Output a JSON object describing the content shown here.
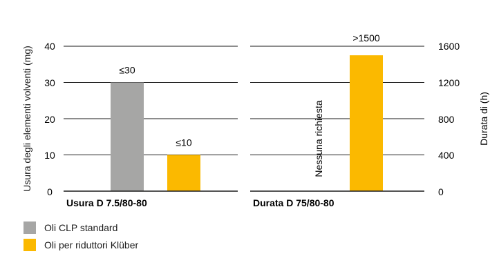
{
  "colors": {
    "standard": "#a6a6a5",
    "kluber": "#fbb900",
    "axis": "#1a1a1a"
  },
  "chart_data": [
    {
      "type": "bar",
      "title": "Usura D 7.5/80-80",
      "ylabel": "Usura degli  elementi volventi (mg)",
      "ylim": [
        0,
        40
      ],
      "yticks": [
        "0",
        "10",
        "20",
        "30",
        "40"
      ],
      "series": [
        {
          "name": "Oli CLP standard",
          "values": [
            30
          ],
          "label": "≤30"
        },
        {
          "name": "Oli per riduttori Klüber",
          "values": [
            10
          ],
          "label": "≤10"
        }
      ]
    },
    {
      "type": "bar",
      "title": "Durata D 75/80-80",
      "ylabel": "Durata di (h)",
      "ylim": [
        0,
        1600
      ],
      "yticks": [
        "0",
        "400",
        "800",
        "1200",
        "1600"
      ],
      "annotation": "Nessuna richiesta",
      "series": [
        {
          "name": "Oli per riduttori Klüber",
          "values": [
            1500
          ],
          "label": ">1500"
        }
      ]
    }
  ],
  "legend": [
    {
      "label": "Oli CLP standard",
      "color": "#a6a6a5"
    },
    {
      "label": "Oli per riduttori Klüber",
      "color": "#fbb900"
    }
  ]
}
